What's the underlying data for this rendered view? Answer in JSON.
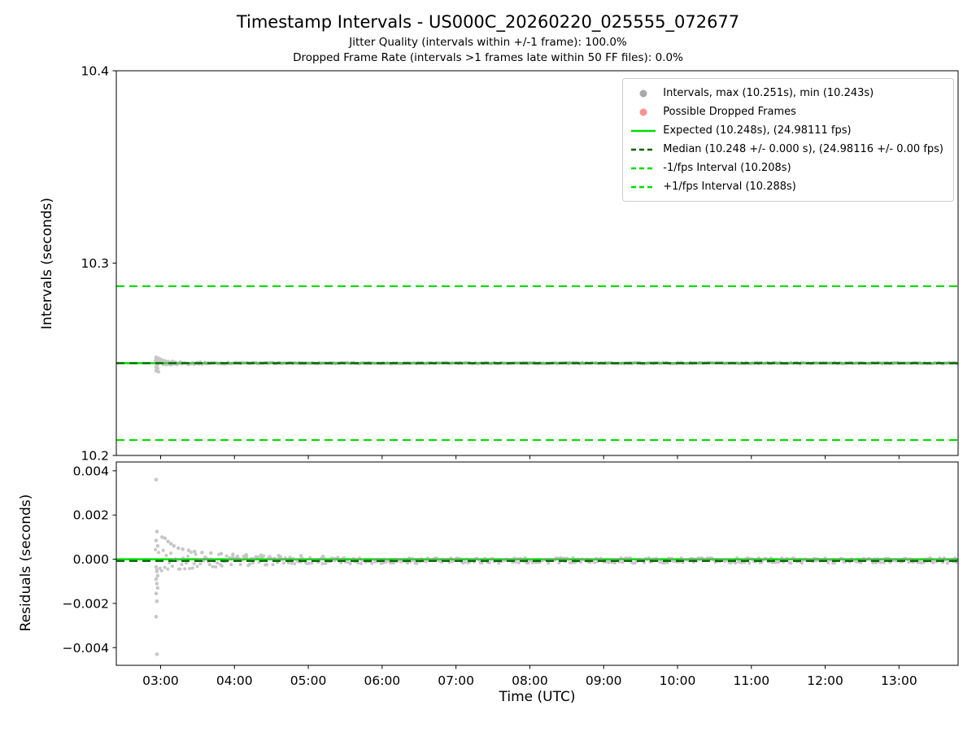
{
  "title": "Timestamp Intervals - US000C_20260220_025555_072677",
  "subtitles": {
    "jitter": "Jitter Quality (intervals within +/-1 frame): 100.0%",
    "dropped": "Dropped Frame Rate (intervals >1 frames late within 50 FF files): 0.0%"
  },
  "colors": {
    "expected": "#00dd00",
    "median": "#006400",
    "scatter": "#9a9a9a",
    "dropped": "#ff7f7f",
    "axis": "#000000",
    "background": "#ffffff"
  },
  "chart_data": [
    {
      "name": "intervals",
      "type": "scatter",
      "ylabel": "Intervals (seconds)",
      "xlim": [
        2.4,
        13.8
      ],
      "ylim": [
        10.2,
        10.4
      ],
      "yticks": [
        {
          "v": 10.2,
          "label": "10.2"
        },
        {
          "v": 10.3,
          "label": "10.3"
        },
        {
          "v": 10.4,
          "label": "10.4"
        }
      ],
      "xticks": [
        {
          "v": 3,
          "label": "03:00"
        },
        {
          "v": 4,
          "label": "04:00"
        },
        {
          "v": 5,
          "label": "05:00"
        },
        {
          "v": 6,
          "label": "06:00"
        },
        {
          "v": 7,
          "label": "07:00"
        },
        {
          "v": 8,
          "label": "08:00"
        },
        {
          "v": 9,
          "label": "09:00"
        },
        {
          "v": 10,
          "label": "10:00"
        },
        {
          "v": 11,
          "label": "11:00"
        },
        {
          "v": 12,
          "label": "12:00"
        },
        {
          "v": 13,
          "label": "13:00"
        }
      ],
      "show_xtick_labels": false,
      "hlines": [
        {
          "name": "expected-line",
          "y": 10.248,
          "color": "expected",
          "style": "solid",
          "width": 2.5
        },
        {
          "name": "median-line",
          "y": 10.248,
          "color": "median",
          "style": "dashed",
          "width": 2.2
        },
        {
          "name": "minus-1fps-line",
          "y": 10.208,
          "color": "expected",
          "style": "dashed",
          "width": 2.2
        },
        {
          "name": "plus-1fps-line",
          "y": 10.288,
          "color": "expected",
          "style": "dashed",
          "width": 2.2
        }
      ],
      "baseline": {
        "x0": 2.93,
        "x1": 13.8,
        "n": 520,
        "y": 10.248,
        "amp0": 0.00035,
        "amp1": 0.0013,
        "tau": 0.35,
        "seed": 7
      },
      "points": [
        [
          2.94,
          10.251
        ],
        [
          2.95,
          10.2507
        ],
        [
          2.94,
          10.2503
        ],
        [
          2.96,
          10.25
        ],
        [
          2.95,
          10.2497
        ],
        [
          2.94,
          10.2493
        ],
        [
          2.96,
          10.2489
        ],
        [
          2.95,
          10.2484
        ],
        [
          2.94,
          10.2478
        ],
        [
          2.96,
          10.2472
        ],
        [
          2.95,
          10.2466
        ],
        [
          2.94,
          10.246
        ],
        [
          2.96,
          10.2453
        ],
        [
          2.95,
          10.2447
        ],
        [
          2.94,
          10.2441
        ],
        [
          2.97,
          10.2435
        ],
        [
          2.98,
          10.2504
        ],
        [
          3.0,
          10.2499
        ],
        [
          3.03,
          10.2494
        ],
        [
          3.06,
          10.2491
        ],
        [
          3.1,
          10.2488
        ],
        [
          3.15,
          10.2486
        ],
        [
          3.2,
          10.2484
        ],
        [
          3.27,
          10.2483
        ]
      ],
      "legend": [
        {
          "marker": "dot",
          "color": "scatter",
          "label": "Intervals, max (10.251s), min (10.243s)"
        },
        {
          "marker": "dot",
          "color": "dropped",
          "label": "Possible Dropped Frames"
        },
        {
          "marker": "line",
          "style": "solid",
          "color": "expected",
          "label": "Expected (10.248s), (24.98111 fps)"
        },
        {
          "marker": "line",
          "style": "dashed",
          "color": "median",
          "label": "Median (10.248 +/- 0.000 s), (24.98116 +/- 0.00 fps)"
        },
        {
          "marker": "line",
          "style": "dashed",
          "color": "expected",
          "label": "-1/fps Interval (10.208s)"
        },
        {
          "marker": "line",
          "style": "dashed",
          "color": "expected",
          "label": "+1/fps Interval (10.288s)"
        }
      ]
    },
    {
      "name": "residuals",
      "type": "scatter",
      "ylabel": "Residuals (seconds)",
      "xlabel": "Time (UTC)",
      "xlim": [
        2.4,
        13.8
      ],
      "ylim": [
        -0.0048,
        0.0044
      ],
      "yticks": [
        {
          "v": -0.004,
          "label": "−0.004"
        },
        {
          "v": -0.002,
          "label": "−0.002"
        },
        {
          "v": 0,
          "label": "0.000"
        },
        {
          "v": 0.002,
          "label": "0.002"
        },
        {
          "v": 0.004,
          "label": "0.004"
        }
      ],
      "xticks": [
        {
          "v": 3,
          "label": "03:00"
        },
        {
          "v": 4,
          "label": "04:00"
        },
        {
          "v": 5,
          "label": "05:00"
        },
        {
          "v": 6,
          "label": "06:00"
        },
        {
          "v": 7,
          "label": "07:00"
        },
        {
          "v": 8,
          "label": "08:00"
        },
        {
          "v": 9,
          "label": "09:00"
        },
        {
          "v": 10,
          "label": "10:00"
        },
        {
          "v": 11,
          "label": "11:00"
        },
        {
          "v": 12,
          "label": "12:00"
        },
        {
          "v": 13,
          "label": "13:00"
        }
      ],
      "show_xtick_labels": true,
      "hlines": [
        {
          "name": "residual-expected-line",
          "y": 0,
          "color": "expected",
          "style": "solid",
          "width": 2.5
        },
        {
          "name": "residual-median-line",
          "y": -8e-05,
          "color": "median",
          "style": "dashed",
          "width": 2.2
        }
      ],
      "baseline": {
        "x0": 2.93,
        "x1": 13.8,
        "n": 520,
        "y": -6e-05,
        "amp0": 0.00012,
        "amp1": 0.00045,
        "tau": 0.9,
        "seed": 13
      },
      "points": [
        [
          2.94,
          0.0036
        ],
        [
          2.95,
          0.00125
        ],
        [
          2.94,
          0.00085
        ],
        [
          2.96,
          0.0006
        ],
        [
          2.94,
          -0.00035
        ],
        [
          2.95,
          -0.00055
        ],
        [
          2.96,
          -0.00075
        ],
        [
          2.94,
          -0.0009
        ],
        [
          2.95,
          -0.0011
        ],
        [
          2.96,
          -0.0013
        ],
        [
          2.94,
          -0.00155
        ],
        [
          2.95,
          -0.0019
        ],
        [
          2.94,
          -0.0026
        ],
        [
          2.95,
          -0.0043
        ],
        [
          3.02,
          0.001
        ],
        [
          3.06,
          0.00095
        ],
        [
          3.1,
          0.0008
        ],
        [
          3.14,
          0.0007
        ],
        [
          3.18,
          0.0006
        ],
        [
          3.24,
          0.0005
        ],
        [
          3.3,
          0.00045
        ],
        [
          3.38,
          0.0004
        ],
        [
          3.46,
          0.00035
        ],
        [
          3.56,
          0.0003
        ],
        [
          3.68,
          0.00028
        ],
        [
          3.82,
          0.00025
        ],
        [
          3.98,
          0.00022
        ],
        [
          4.16,
          0.0002
        ],
        [
          4.36,
          0.00018
        ],
        [
          4.6,
          0.00016
        ],
        [
          4.9,
          0.00015
        ],
        [
          5.2,
          0.00013
        ]
      ]
    }
  ]
}
